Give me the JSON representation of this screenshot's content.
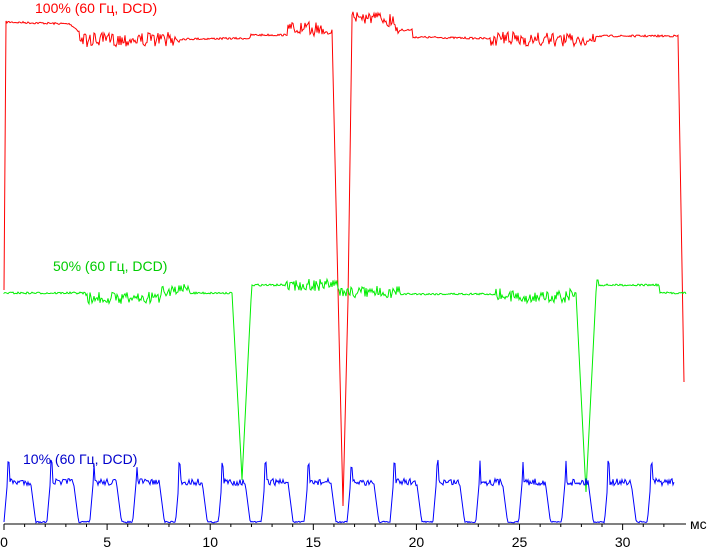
{
  "chart_data": {
    "type": "line",
    "xlabel": "мс",
    "xlim": [
      0,
      33.2
    ],
    "x_ticks": [
      "0",
      "5",
      "10",
      "15",
      "20",
      "25",
      "30"
    ],
    "grid": false,
    "legend": "inline-labels",
    "series": [
      {
        "name": "100% (60 Гц, DCD)",
        "color": "#ff0000",
        "level": 0.97,
        "transitions": [
          [
            0.15,
            0.5
          ],
          [
            16.3,
            0.0
          ],
          [
            16.6,
            1.0
          ],
          [
            32.9,
            0.5
          ]
        ]
      },
      {
        "name": "50% (60 Гц, DCD)",
        "color": "#00ee00",
        "level": 0.5,
        "dips": [
          [
            11.6,
            0.1
          ],
          [
            28.1,
            0.1
          ]
        ]
      },
      {
        "name": "10% (60 Гц, DCD)",
        "color": "#0000ff",
        "level": 0.05,
        "pulse_period_ms": 2.08,
        "pulse_count": 16
      }
    ]
  }
}
